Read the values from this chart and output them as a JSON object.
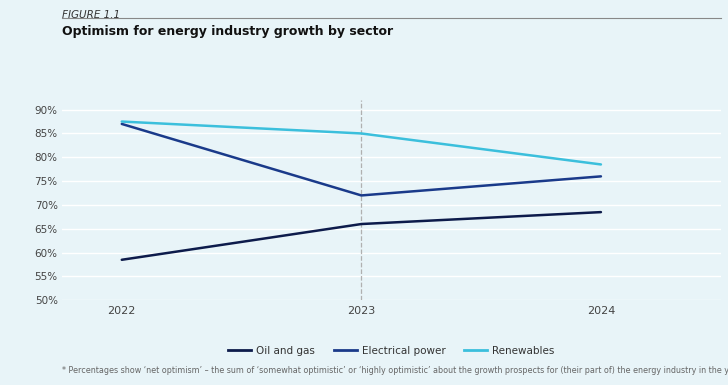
{
  "figure_label": "FIGURE 1.1",
  "title": "Optimism for energy industry growth by sector",
  "footnote": "* Percentages show ‘net optimism’ – the sum of ‘somewhat optimistic’ or ‘highly optimistic’ about the growth prospects for (their part of) the energy industry in the year ahead.",
  "x_values": [
    2022,
    2023,
    2024
  ],
  "series": [
    {
      "name": "Oil and gas",
      "values": [
        58.5,
        66.0,
        68.5
      ],
      "color": "#0d1b4b",
      "linewidth": 1.8
    },
    {
      "name": "Electrical power",
      "values": [
        87.0,
        72.0,
        76.0
      ],
      "color": "#1a3a8a",
      "linewidth": 1.8
    },
    {
      "name": "Renewables",
      "values": [
        87.5,
        85.0,
        78.5
      ],
      "color": "#3bbfdc",
      "linewidth": 1.8
    }
  ],
  "ylim": [
    50,
    92
  ],
  "yticks": [
    50,
    55,
    60,
    65,
    70,
    75,
    80,
    85,
    90
  ],
  "ytick_labels": [
    "50%",
    "55%",
    "60%",
    "65%",
    "70%",
    "75%",
    "80%",
    "85%",
    "90%"
  ],
  "background_color": "#e8f4f8",
  "grid_color": "#ffffff",
  "vline_x": 2023,
  "vline_color": "#b0b0b0",
  "vline_style": "--",
  "xlim_left": 2021.75,
  "xlim_right": 2024.5
}
